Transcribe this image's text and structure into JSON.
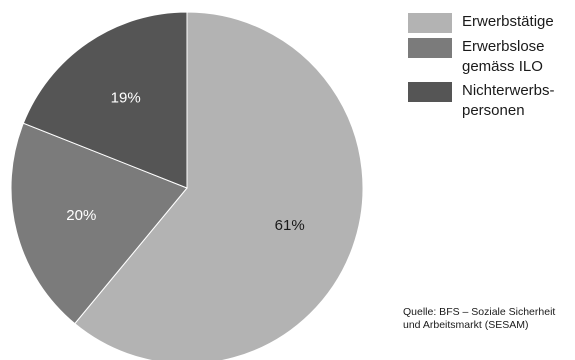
{
  "chart_data": {
    "type": "pie",
    "slices": [
      {
        "label": "Erwerbstätige",
        "value": 61,
        "display": "61%",
        "color": "#b3b3b3"
      },
      {
        "label": "Erwerbslose gemäss ILO",
        "value": 20,
        "display": "20%",
        "color": "#7b7b7b"
      },
      {
        "label": "Nichterwerbs-personen",
        "value": 19,
        "display": "19%",
        "color": "#555555"
      }
    ],
    "legend_position": "top-right",
    "start_angle": "12 o'clock",
    "direction": "clockwise"
  },
  "legend": {
    "items": [
      {
        "lines": [
          "Erwerbstätige"
        ],
        "color": "#b3b3b3"
      },
      {
        "lines": [
          "Erwerbslose",
          "gemäss ILO"
        ],
        "color": "#7b7b7b"
      },
      {
        "lines": [
          "Nichterwerbs-",
          "personen"
        ],
        "color": "#555555"
      }
    ]
  },
  "source": {
    "line1": "Quelle: BFS – Soziale Sicherheit",
    "line2": "und Arbeitsmarkt (SESAM)"
  }
}
